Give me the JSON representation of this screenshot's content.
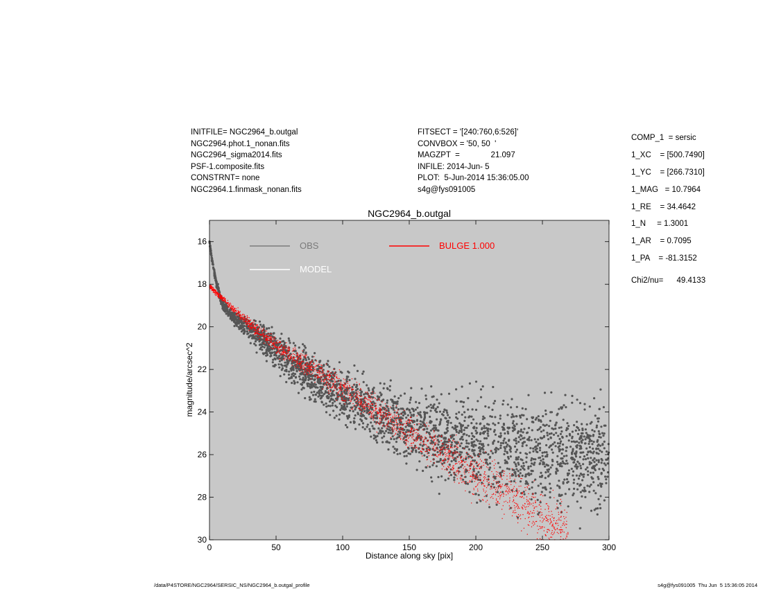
{
  "header_left": [
    "INITFILE= NGC2964_b.outgal",
    "NGC2964.phot.1_nonan.fits",
    "NGC2964_sigma2014.fits",
    "PSF-1.composite.fits",
    "CONSTRNT= none",
    "NGC2964.1.finmask_nonan.fits"
  ],
  "header_mid": [
    "FITSECT = '[240:760,6:526]'",
    "CONVBOX = '50, 50  '",
    "MAGZPT  =              21.097",
    "INFILE: 2014-Jun- 5",
    "PLOT:  5-Jun-2014 15:36:05.00",
    "s4g@fys091005"
  ],
  "params": [
    "COMP_1  = sersic",
    "1_XC    = [500.7490]",
    "1_YC    = [266.7310]",
    "1_MAG   = 10.7964",
    "1_RE    = 34.4642",
    "1_N     = 1.3001",
    "1_AR    = 0.7095",
    "1_PA    = -81.3152"
  ],
  "chi_label": "Chi2/nu=      49.4133",
  "footer_left": "/data/P4STORE/NGC2964/SERSIC_NS/NGC2964_b.outgal_profile",
  "footer_right": "s4g@fys091005  Thu Jun  5 15:36:05 2014",
  "chart_data": {
    "type": "scatter",
    "title": "NGC2964_b.outgal",
    "xlabel": "Distance along sky [pix]",
    "ylabel": "magnitude/arcsec^2",
    "xlim": [
      0,
      300
    ],
    "ylim": [
      30,
      15.0
    ],
    "y_reversed": true,
    "xticks": [
      0,
      50,
      100,
      150,
      200,
      250,
      300
    ],
    "yticks": [
      16,
      18,
      20,
      22,
      24,
      26,
      28,
      30
    ],
    "grid": false,
    "legend_position": "top-left",
    "colors": {
      "plot_bg": "#c8c8c8",
      "obs": "#555555",
      "model": "#ffffff",
      "bulge": "#ff0000",
      "obs_legend": "#7a7a7a"
    },
    "legend": [
      {
        "label": "OBS",
        "color": "#7a7a7a"
      },
      {
        "label": "MODEL",
        "color": "#ffffff"
      },
      {
        "label": "BULGE  1.000",
        "color": "#ff0000"
      }
    ],
    "series": [
      {
        "name": "OBS",
        "style": "dense scatter, spread widening with radius",
        "x": [
          0,
          2,
          5,
          10,
          20,
          30,
          40,
          50,
          60,
          75,
          100,
          125,
          150,
          175,
          200,
          225,
          250,
          275,
          300
        ],
        "y": [
          16.0,
          16.9,
          17.9,
          19.0,
          19.7,
          20.1,
          20.6,
          21.1,
          21.6,
          22.3,
          23.2,
          24.0,
          24.7,
          25.2,
          25.6,
          25.8,
          25.9,
          26.0,
          26.0
        ],
        "spread": [
          0.05,
          0.1,
          0.15,
          0.2,
          0.3,
          0.5,
          0.7,
          0.8,
          0.9,
          1.0,
          1.2,
          1.4,
          1.6,
          1.8,
          2.0,
          2.2,
          2.3,
          2.4,
          2.4
        ]
      },
      {
        "name": "BULGE  1.000",
        "style": "red dense scatter band",
        "x": [
          0,
          25,
          50,
          75,
          100,
          125,
          150,
          175,
          200,
          225,
          250,
          270
        ],
        "y": [
          18.1,
          19.6,
          20.9,
          21.9,
          22.9,
          23.9,
          24.9,
          25.9,
          26.9,
          27.9,
          28.9,
          29.9
        ],
        "spread": [
          0.1,
          0.2,
          0.4,
          0.5,
          0.6,
          0.7,
          0.8,
          0.9,
          1.0,
          1.1,
          1.2,
          1.3
        ]
      }
    ]
  }
}
